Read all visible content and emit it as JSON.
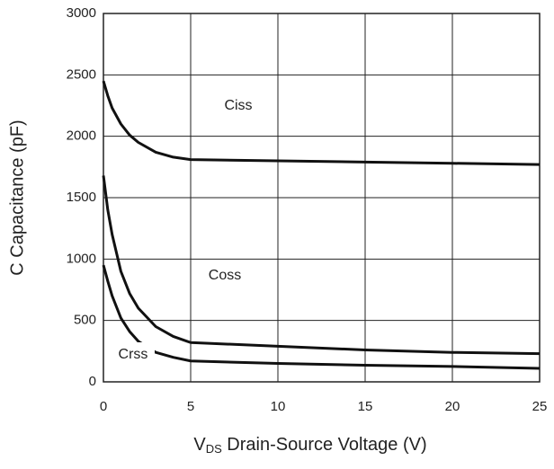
{
  "chart_data": {
    "type": "line",
    "ylabel": "C Capacitance (pF)",
    "xlabel": [
      "V",
      "DS",
      " Drain-Source Voltage (V)"
    ],
    "xlim": [
      0,
      25
    ],
    "xticks": [
      0,
      5,
      10,
      15,
      20,
      25
    ],
    "ylim": [
      0,
      3000
    ],
    "yticks": [
      0,
      500,
      1000,
      1500,
      2000,
      2500,
      3000
    ],
    "grid": true,
    "x": [
      0,
      0.25,
      0.5,
      1,
      1.5,
      2,
      3,
      4,
      5,
      10,
      15,
      20,
      25
    ],
    "series": [
      {
        "name": "Ciss",
        "color": "#111111",
        "values": [
          2450,
          2330,
          2230,
          2100,
          2010,
          1950,
          1870,
          1830,
          1810,
          1800,
          1790,
          1780,
          1770
        ]
      },
      {
        "name": "Coss",
        "color": "#111111",
        "values": [
          1680,
          1400,
          1200,
          900,
          720,
          600,
          450,
          370,
          320,
          290,
          260,
          240,
          230
        ]
      },
      {
        "name": "Crss",
        "color": "#111111",
        "values": [
          950,
          820,
          700,
          520,
          410,
          330,
          240,
          200,
          170,
          150,
          135,
          125,
          110
        ]
      }
    ]
  }
}
